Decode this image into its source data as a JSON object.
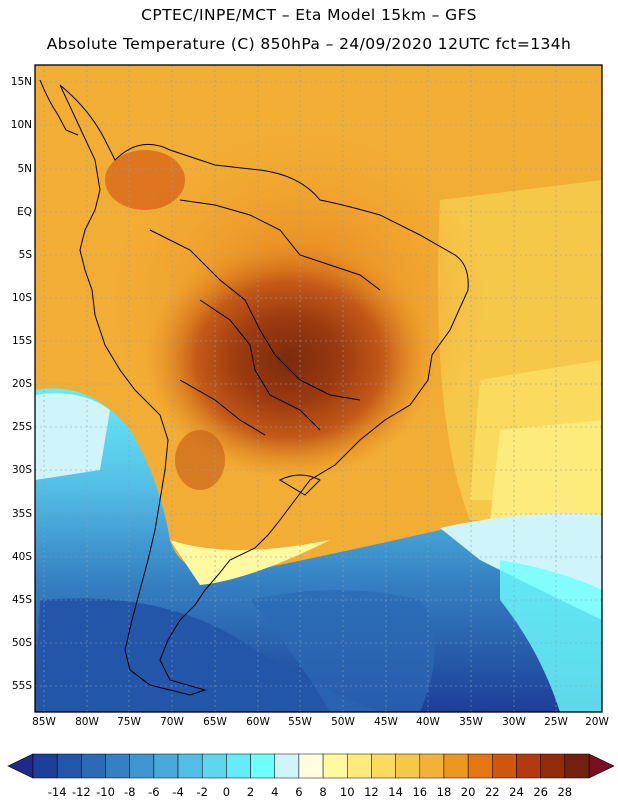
{
  "header": {
    "line1": "CPTEC/INPE/MCT –  Eta Model 15km – GFS",
    "line2": "Absolute Temperature (C) 850hPa – 24/09/2020 12UTC fct=134h"
  },
  "map": {
    "lat_labels": [
      "15N",
      "10N",
      "5N",
      "EQ",
      "5S",
      "10S",
      "15S",
      "20S",
      "25S",
      "30S",
      "35S",
      "40S",
      "45S",
      "50S",
      "55S"
    ],
    "lon_labels": [
      "85W",
      "80W",
      "75W",
      "70W",
      "65W",
      "60W",
      "55W",
      "50W",
      "45W",
      "40W",
      "35W",
      "30W",
      "25W",
      "20W"
    ]
  },
  "colorbar": {
    "labels": [
      "-14",
      "-12",
      "-10",
      "-8",
      "-6",
      "-4",
      "-2",
      "0",
      "2",
      "4",
      "6",
      "8",
      "10",
      "12",
      "14",
      "16",
      "18",
      "20",
      "22",
      "24",
      "26",
      "28"
    ],
    "colors": [
      "#1c3f97",
      "#2355a8",
      "#2b6ab5",
      "#3580c2",
      "#3f95cf",
      "#49a9da",
      "#54bfe6",
      "#5fd6ef",
      "#66ecf8",
      "#6effff",
      "#cff5fb",
      "#fffce0",
      "#fff9a0",
      "#fdeb7c",
      "#fadb5e",
      "#f6c84a",
      "#f2b23a",
      "#ec9720",
      "#e47710",
      "#cf560d",
      "#b33a0e",
      "#922b0a",
      "#722010"
    ],
    "end_low": "#1f2a88",
    "end_high": "#7a0f1f"
  }
}
